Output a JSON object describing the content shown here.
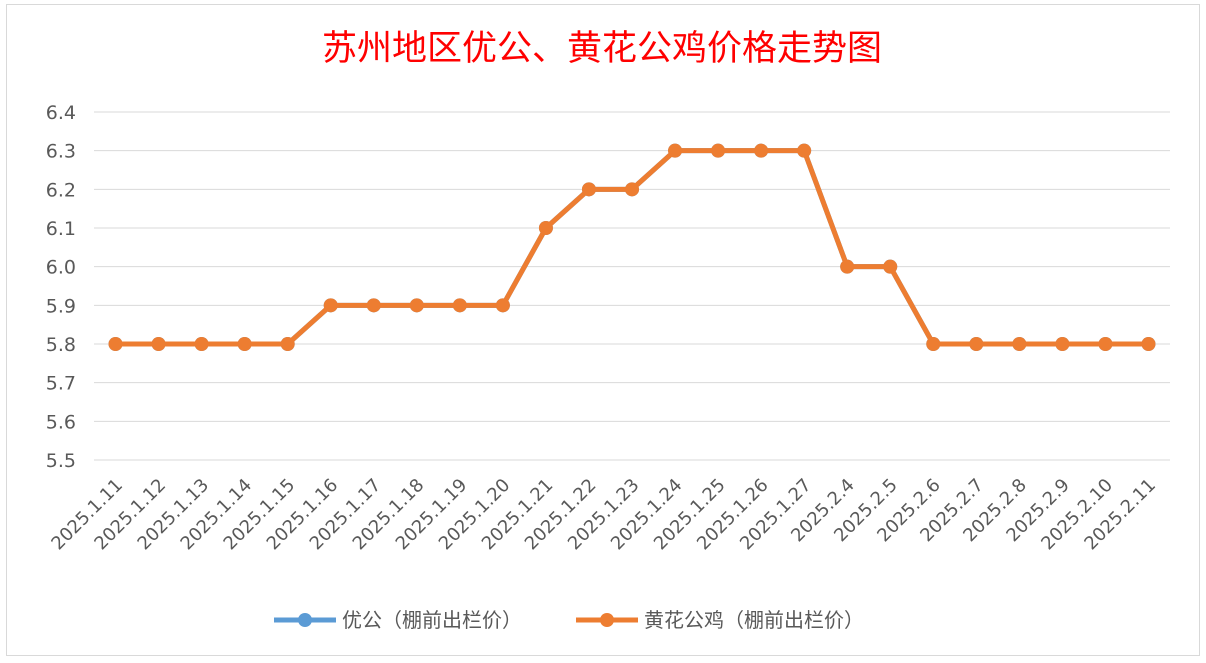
{
  "chart_data": {
    "type": "line",
    "title": "苏州地区优公、黄花公鸡价格走势图",
    "xlabel": "",
    "ylabel": "",
    "ylim": [
      5.5,
      6.4
    ],
    "yticks": [
      "5.5",
      "5.6",
      "5.7",
      "5.8",
      "5.9",
      "6.0",
      "6.1",
      "6.2",
      "6.3",
      "6.4"
    ],
    "grid": true,
    "legend_position": "bottom",
    "categories": [
      "2025.1.11",
      "2025.1.12",
      "2025.1.13",
      "2025.1.14",
      "2025.1.15",
      "2025.1.16",
      "2025.1.17",
      "2025.1.18",
      "2025.1.19",
      "2025.1.20",
      "2025.1.21",
      "2025.1.22",
      "2025.1.23",
      "2025.1.24",
      "2025.1.25",
      "2025.1.26",
      "2025.1.27",
      "2025.2.4",
      "2025.2.5",
      "2025.2.6",
      "2025.2.7",
      "2025.2.8",
      "2025.2.9",
      "2025.2.10",
      "2025.2.11"
    ],
    "series": [
      {
        "name": "优公（棚前出栏价）",
        "color": "#5b9bd5",
        "values": [
          5.8,
          5.8,
          5.8,
          5.8,
          5.8,
          5.9,
          5.9,
          5.9,
          5.9,
          5.9,
          6.1,
          6.2,
          6.2,
          6.3,
          6.3,
          6.3,
          6.3,
          6.0,
          6.0,
          5.8,
          5.8,
          5.8,
          5.8,
          5.8,
          5.8
        ]
      },
      {
        "name": "黄花公鸡（棚前出栏价）",
        "color": "#ed7d31",
        "values": [
          5.8,
          5.8,
          5.8,
          5.8,
          5.8,
          5.9,
          5.9,
          5.9,
          5.9,
          5.9,
          6.1,
          6.2,
          6.2,
          6.3,
          6.3,
          6.3,
          6.3,
          6.0,
          6.0,
          5.8,
          5.8,
          5.8,
          5.8,
          5.8,
          5.8
        ]
      }
    ]
  }
}
